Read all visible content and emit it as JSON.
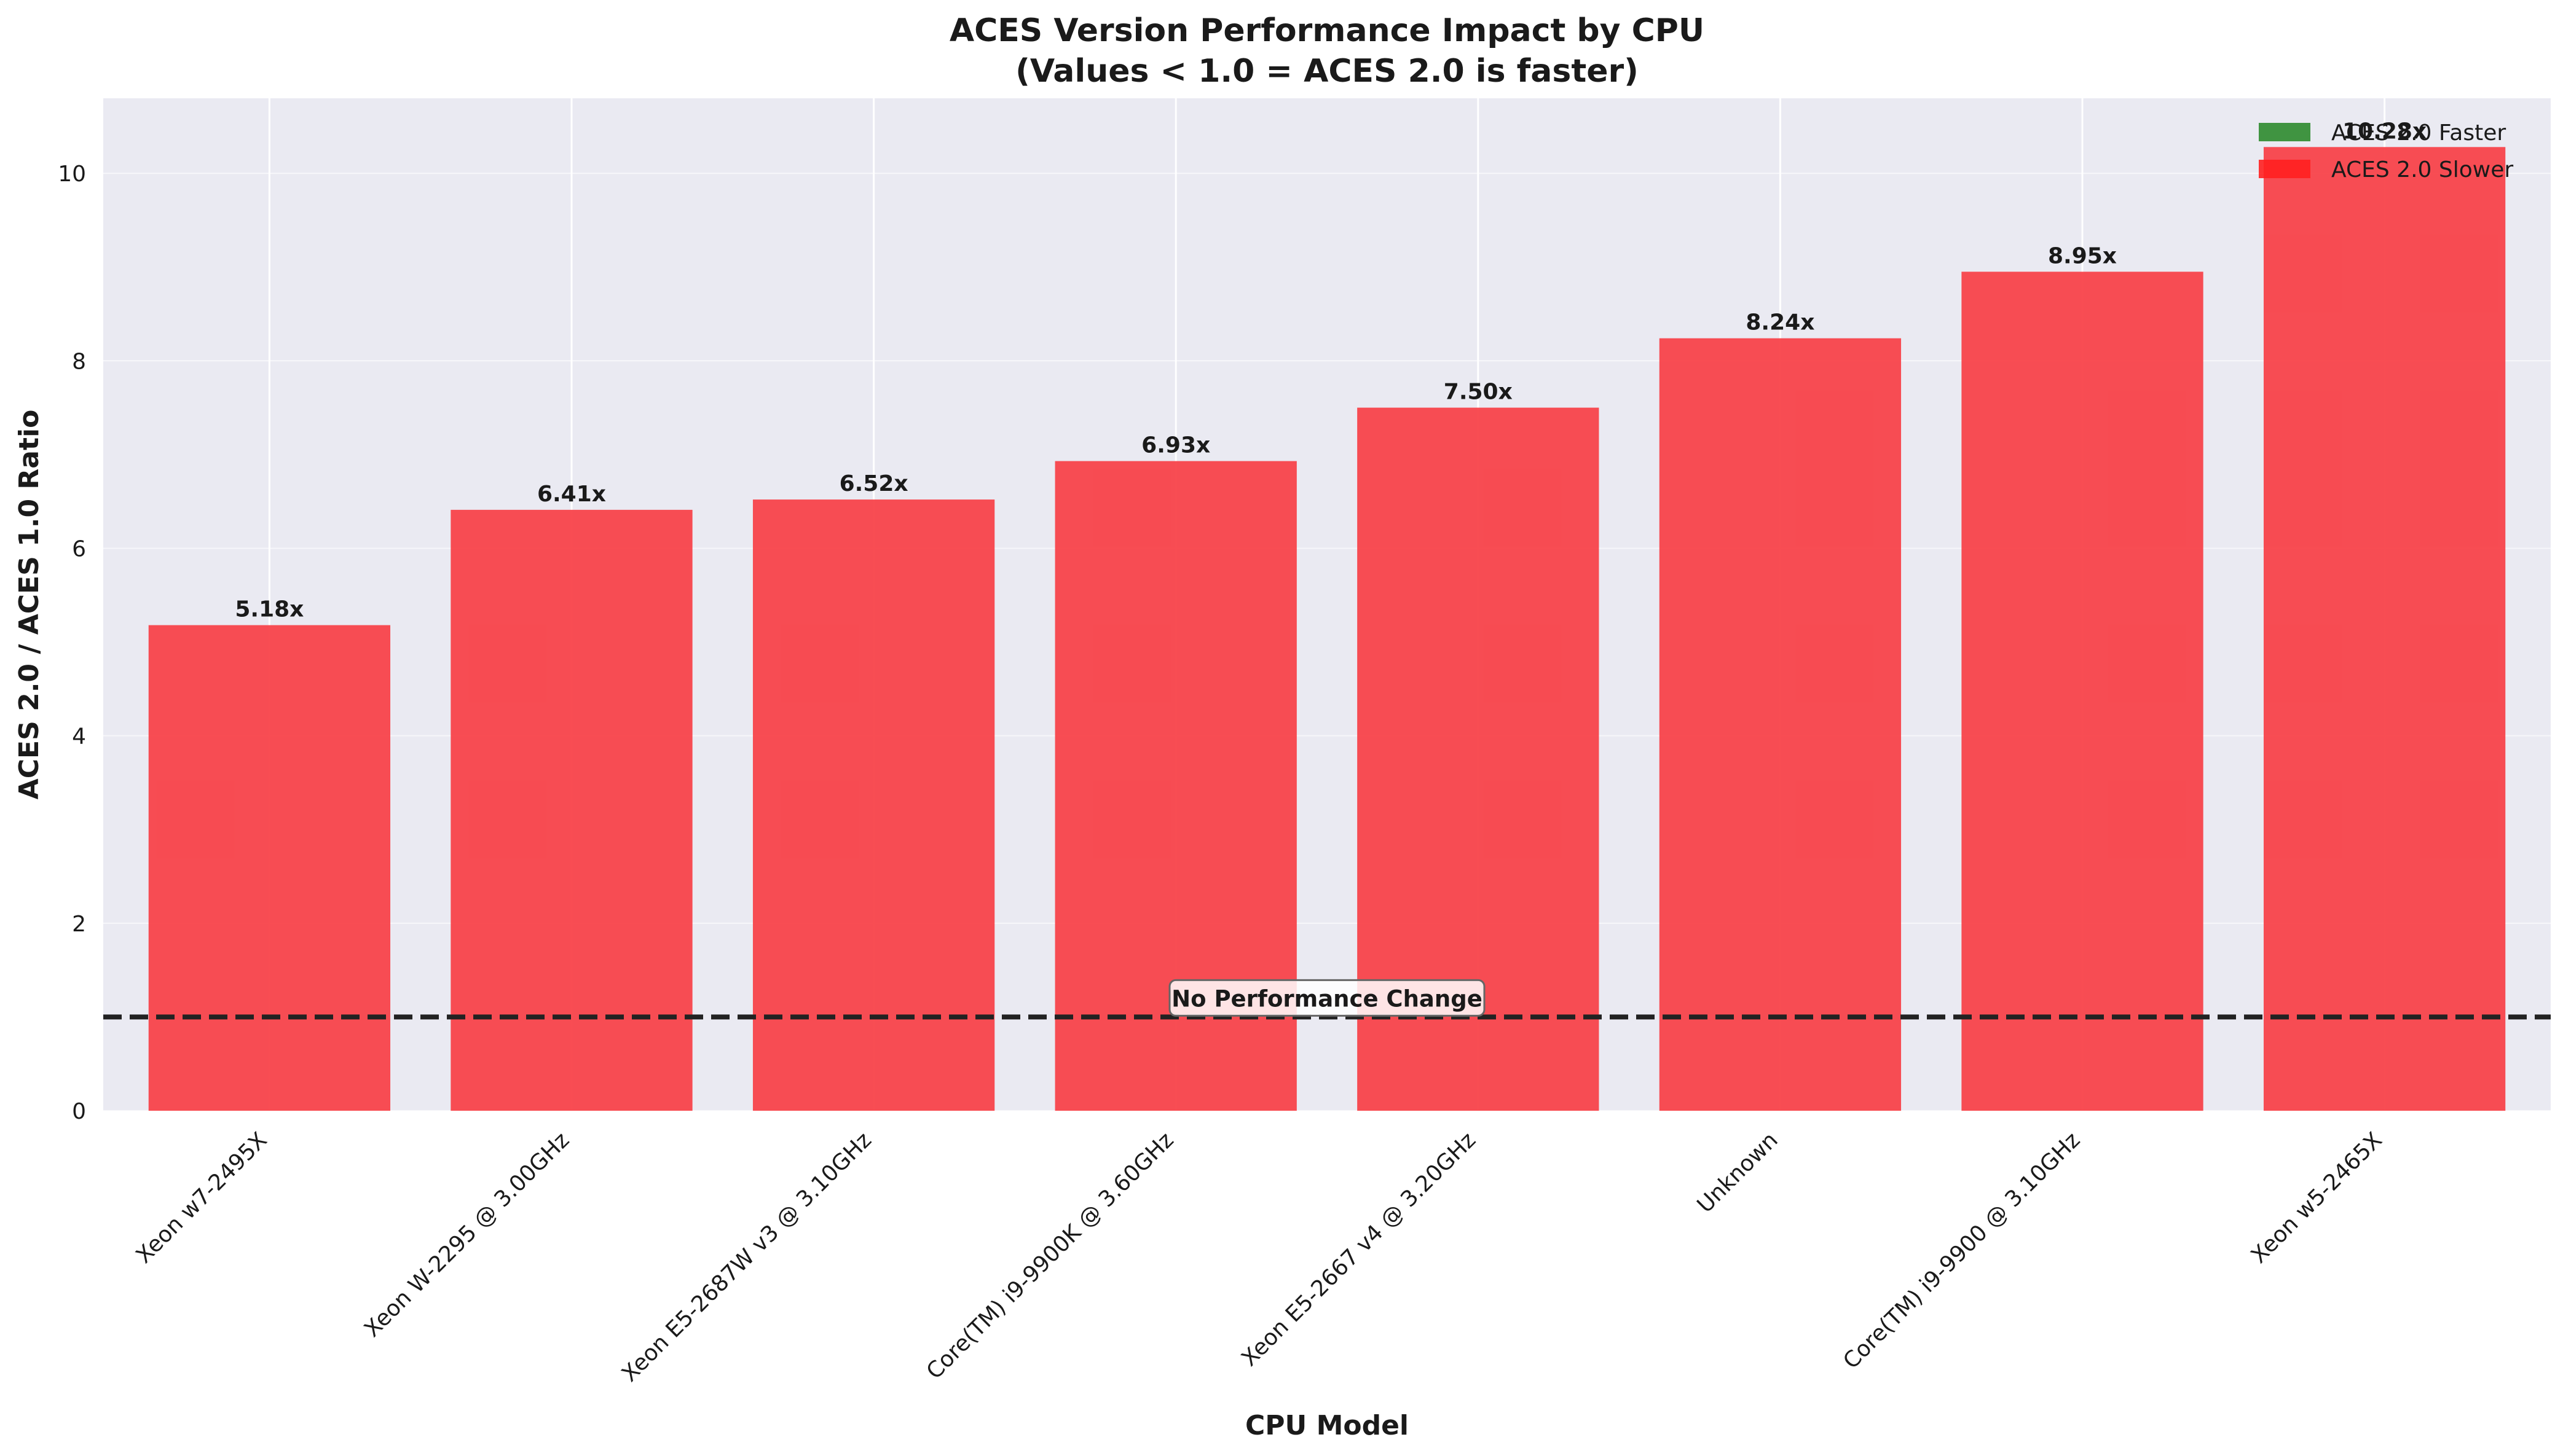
{
  "chart_data": {
    "type": "bar",
    "title": "ACES Version Performance Impact by CPU",
    "subtitle": "(Values < 1.0 = ACES 2.0 is faster)",
    "xlabel": "CPU Model",
    "ylabel": "ACES 2.0 / ACES 1.0 Ratio",
    "categories": [
      "Xeon w7-2495X",
      "Xeon W-2295 @ 3.00GHz",
      "Xeon E5-2687W v3 @ 3.10GHz",
      "Core(TM) i9-9900K @ 3.60GHz",
      "Xeon E5-2667 v4 @ 3.20GHz",
      "Unknown",
      "Core(TM) i9-9900 @ 3.10GHz",
      "Xeon w5-2465X"
    ],
    "values": [
      5.18,
      6.41,
      6.52,
      6.93,
      7.5,
      8.24,
      8.95,
      10.28
    ],
    "value_labels": [
      "5.18x",
      "6.41x",
      "6.52x",
      "6.93x",
      "7.50x",
      "8.24x",
      "8.95x",
      "10.28x"
    ],
    "ylim": [
      0,
      10.8
    ],
    "yticks": [
      0,
      2,
      4,
      6,
      8,
      10
    ],
    "ytick_labels": [
      "0",
      "2",
      "4",
      "6",
      "8",
      "10"
    ],
    "grid": true,
    "reference_line": {
      "value": 1.0,
      "label": "No Performance Change",
      "style": "dashed",
      "color": "#222222"
    },
    "legend": {
      "position": "top-right",
      "entries": [
        {
          "label": "ACES 2.0 Faster",
          "color": "#2e8b2e"
        },
        {
          "label": "ACES 2.0 Slower",
          "color": "#ff2020"
        }
      ]
    },
    "colors": {
      "bar": "#f8434a",
      "faster": "#2e8b2e",
      "background": "#eaeaf2",
      "grid": "#ffffff"
    }
  }
}
